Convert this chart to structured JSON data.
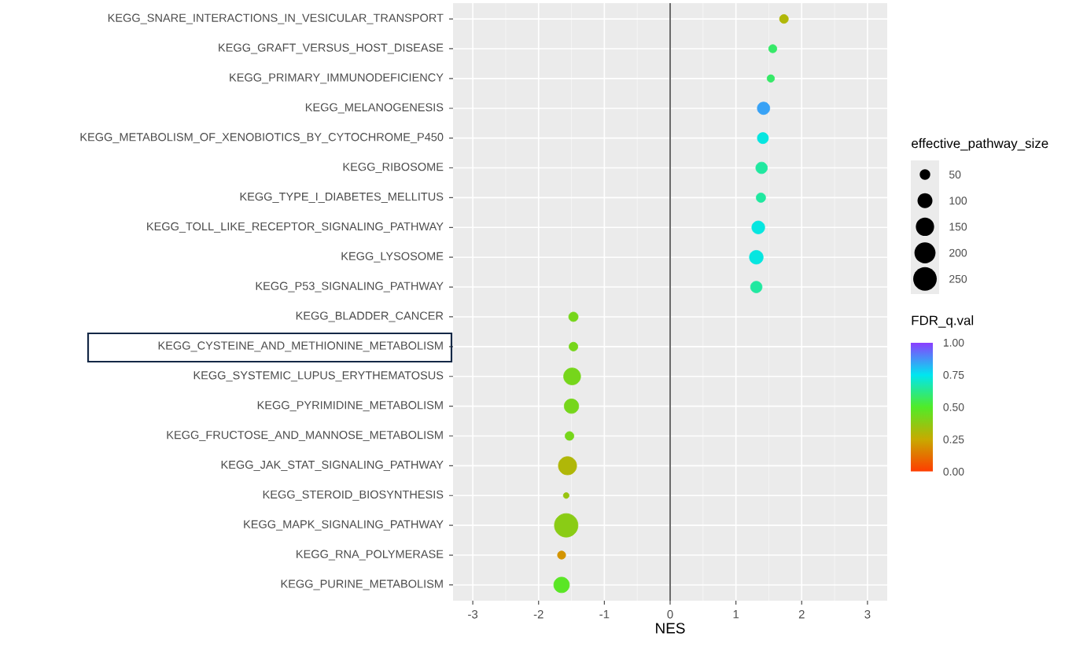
{
  "chart_data": {
    "type": "bubble",
    "xlabel": "NES",
    "legend_title": "effective_pathway_size",
    "clabel": "FDR_q.val",
    "categories": [
      "KEGG_SNARE_INTERACTIONS_IN_VESICULAR_TRANSPORT",
      "KEGG_GRAFT_VERSUS_HOST_DISEASE",
      "KEGG_PRIMARY_IMMUNODEFICIENCY",
      "KEGG_MELANOGENESIS",
      "KEGG_METABOLISM_OF_XENOBIOTICS_BY_CYTOCHROME_P450",
      "KEGG_RIBOSOME",
      "KEGG_TYPE_I_DIABETES_MELLITUS",
      "KEGG_TOLL_LIKE_RECEPTOR_SIGNALING_PATHWAY",
      "KEGG_LYSOSOME",
      "KEGG_P53_SIGNALING_PATHWAY",
      "KEGG_BLADDER_CANCER",
      "KEGG_CYSTEINE_AND_METHIONINE_METABOLISM",
      "KEGG_SYSTEMIC_LUPUS_ERYTHEMATOSUS",
      "KEGG_PYRIMIDINE_METABOLISM",
      "KEGG_FRUCTOSE_AND_MANNOSE_METABOLISM",
      "KEGG_JAK_STAT_SIGNALING_PATHWAY",
      "KEGG_STEROID_BIOSYNTHESIS",
      "KEGG_MAPK_SIGNALING_PATHWAY",
      "KEGG_RNA_POLYMERASE",
      "KEGG_PURINE_METABOLISM"
    ],
    "values": [
      1.73,
      1.56,
      1.53,
      1.42,
      1.41,
      1.39,
      1.38,
      1.34,
      1.31,
      1.31,
      -1.47,
      -1.47,
      -1.49,
      -1.5,
      -1.53,
      -1.56,
      -1.58,
      -1.58,
      -1.65,
      -1.65
    ],
    "sizes": [
      35,
      30,
      25,
      70,
      55,
      60,
      40,
      75,
      85,
      60,
      40,
      35,
      130,
      95,
      35,
      150,
      15,
      250,
      30,
      110
    ],
    "cvalues": [
      0.3,
      0.58,
      0.58,
      0.85,
      0.73,
      0.65,
      0.65,
      0.73,
      0.73,
      0.65,
      0.42,
      0.42,
      0.42,
      0.42,
      0.42,
      0.3,
      0.35,
      0.38,
      0.2,
      0.48
    ],
    "size_legend": [
      {
        "value": 50,
        "label": "50"
      },
      {
        "value": 100,
        "label": "100"
      },
      {
        "value": 150,
        "label": "150"
      },
      {
        "value": 200,
        "label": "200"
      },
      {
        "value": 250,
        "label": "250"
      }
    ],
    "orientation": "horizontal",
    "clim": [
      0,
      1
    ],
    "cticks": [
      {
        "value": 0,
        "label": "0.00"
      },
      {
        "value": 0.25,
        "label": "0.25"
      },
      {
        "value": 0.5,
        "label": "0.50"
      },
      {
        "value": 0.75,
        "label": "0.75"
      },
      {
        "value": 1,
        "label": "1.00"
      }
    ],
    "xlim": [
      -3.3,
      3.3
    ],
    "xticks": [
      {
        "value": -3,
        "label": "-3"
      },
      {
        "value": -2,
        "label": "-2"
      },
      {
        "value": -1,
        "label": "-1"
      },
      {
        "value": 0,
        "label": "0"
      },
      {
        "value": 1,
        "label": "1"
      },
      {
        "value": 2,
        "label": "2"
      },
      {
        "value": 3,
        "label": "3"
      }
    ],
    "ref_lines": [
      {
        "axis": "x",
        "value": 0,
        "color": "#5a5a5a"
      }
    ],
    "grid": true,
    "marker": "circle"
  }
}
